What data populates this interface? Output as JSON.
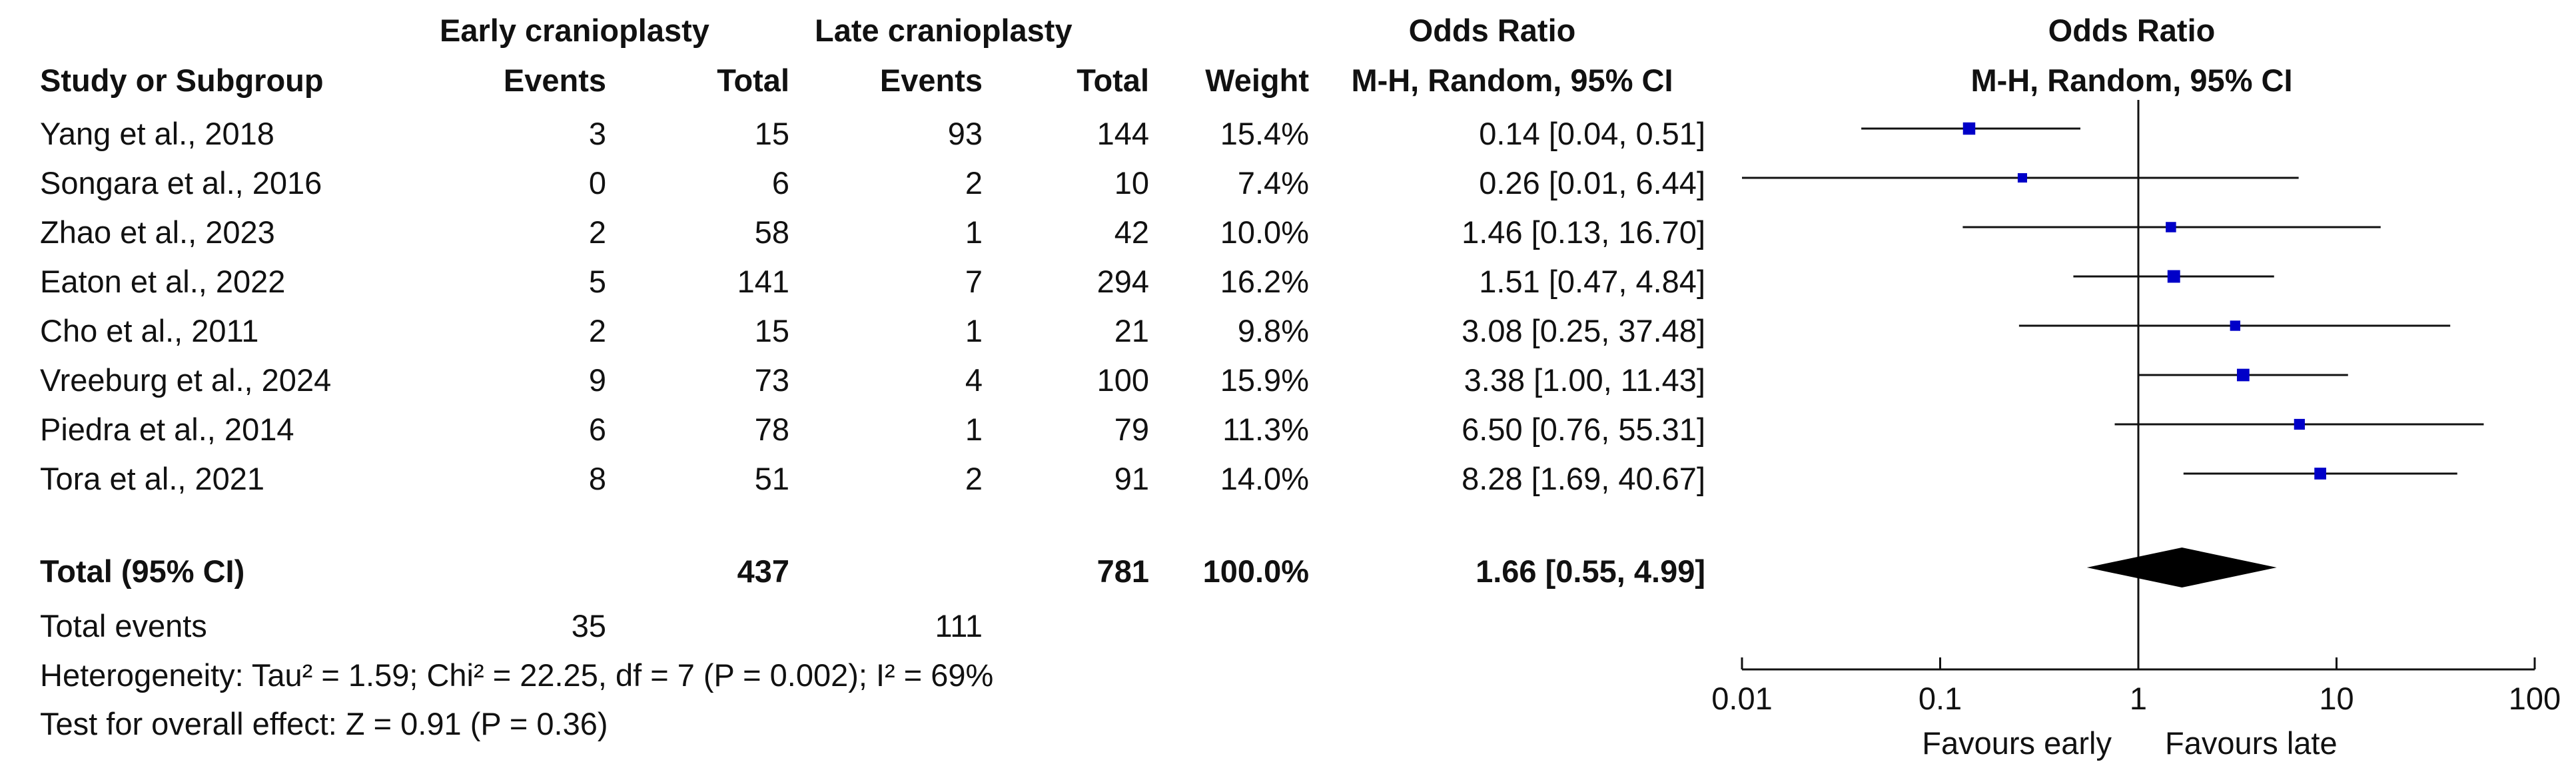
{
  "header": {
    "group_early": "Early cranioplasty",
    "group_late": "Late cranioplasty",
    "odds_ratio_col": "Odds Ratio",
    "study_col": "Study or Subgroup",
    "events_col": "Events",
    "total_col": "Total",
    "weight_col": "Weight",
    "method_col": "M-H, Random, 95% CI",
    "plot_title": "Odds Ratio",
    "plot_method": "M-H, Random, 95% CI"
  },
  "studies": [
    {
      "name": "Yang et al., 2018",
      "e_events": "3",
      "e_total": "15",
      "l_events": "93",
      "l_total": "144",
      "weight": "15.4%",
      "or_text": "0.14 [0.04, 0.51]"
    },
    {
      "name": "Songara et al., 2016",
      "e_events": "0",
      "e_total": "6",
      "l_events": "2",
      "l_total": "10",
      "weight": "7.4%",
      "or_text": "0.26 [0.01, 6.44]"
    },
    {
      "name": "Zhao et al., 2023",
      "e_events": "2",
      "e_total": "58",
      "l_events": "1",
      "l_total": "42",
      "weight": "10.0%",
      "or_text": "1.46 [0.13, 16.70]"
    },
    {
      "name": "Eaton et al., 2022",
      "e_events": "5",
      "e_total": "141",
      "l_events": "7",
      "l_total": "294",
      "weight": "16.2%",
      "or_text": "1.51 [0.47, 4.84]"
    },
    {
      "name": "Cho et al., 2011",
      "e_events": "2",
      "e_total": "15",
      "l_events": "1",
      "l_total": "21",
      "weight": "9.8%",
      "or_text": "3.08 [0.25, 37.48]"
    },
    {
      "name": "Vreeburg et al., 2024",
      "e_events": "9",
      "e_total": "73",
      "l_events": "4",
      "l_total": "100",
      "weight": "15.9%",
      "or_text": "3.38 [1.00, 11.43]"
    },
    {
      "name": "Piedra et al., 2014",
      "e_events": "6",
      "e_total": "78",
      "l_events": "1",
      "l_total": "79",
      "weight": "11.3%",
      "or_text": "6.50 [0.76, 55.31]"
    },
    {
      "name": "Tora et al., 2021",
      "e_events": "8",
      "e_total": "51",
      "l_events": "2",
      "l_total": "91",
      "weight": "14.0%",
      "or_text": "8.28 [1.69, 40.67]"
    }
  ],
  "total": {
    "label": "Total (95% CI)",
    "e_total": "437",
    "l_total": "781",
    "weight": "100.0%",
    "or_text": "1.66 [0.55, 4.99]"
  },
  "total_events": {
    "label": "Total events",
    "e_events": "35",
    "l_events": "111"
  },
  "heterogeneity": "Heterogeneity: Tau² = 1.59; Chi² = 22.25, df = 7 (P = 0.002); I² = 69%",
  "overall_effect": "Test for overall effect: Z = 0.91 (P = 0.36)",
  "chart_data": {
    "type": "forest",
    "x_scale": "log",
    "xlim": [
      0.01,
      100
    ],
    "reference_line": 1,
    "tick_labels": [
      "0.01",
      "0.1",
      "1",
      "10",
      "100"
    ],
    "tick_values": [
      0.01,
      0.1,
      1,
      10,
      100
    ],
    "favours_left": "Favours early",
    "favours_right": "Favours late",
    "marker_color": "#0000c8",
    "points": [
      {
        "or": 0.14,
        "low": 0.04,
        "high": 0.51,
        "weight": 15.4
      },
      {
        "or": 0.26,
        "low": 0.01,
        "high": 6.44,
        "weight": 7.4
      },
      {
        "or": 1.46,
        "low": 0.13,
        "high": 16.7,
        "weight": 10.0
      },
      {
        "or": 1.51,
        "low": 0.47,
        "high": 4.84,
        "weight": 16.2
      },
      {
        "or": 3.08,
        "low": 0.25,
        "high": 37.48,
        "weight": 9.8
      },
      {
        "or": 3.38,
        "low": 1.0,
        "high": 11.43,
        "weight": 15.9
      },
      {
        "or": 6.5,
        "low": 0.76,
        "high": 55.31,
        "weight": 11.3
      },
      {
        "or": 8.28,
        "low": 1.69,
        "high": 40.67,
        "weight": 14.0
      }
    ],
    "pooled": {
      "or": 1.66,
      "low": 0.55,
      "high": 4.99
    }
  }
}
